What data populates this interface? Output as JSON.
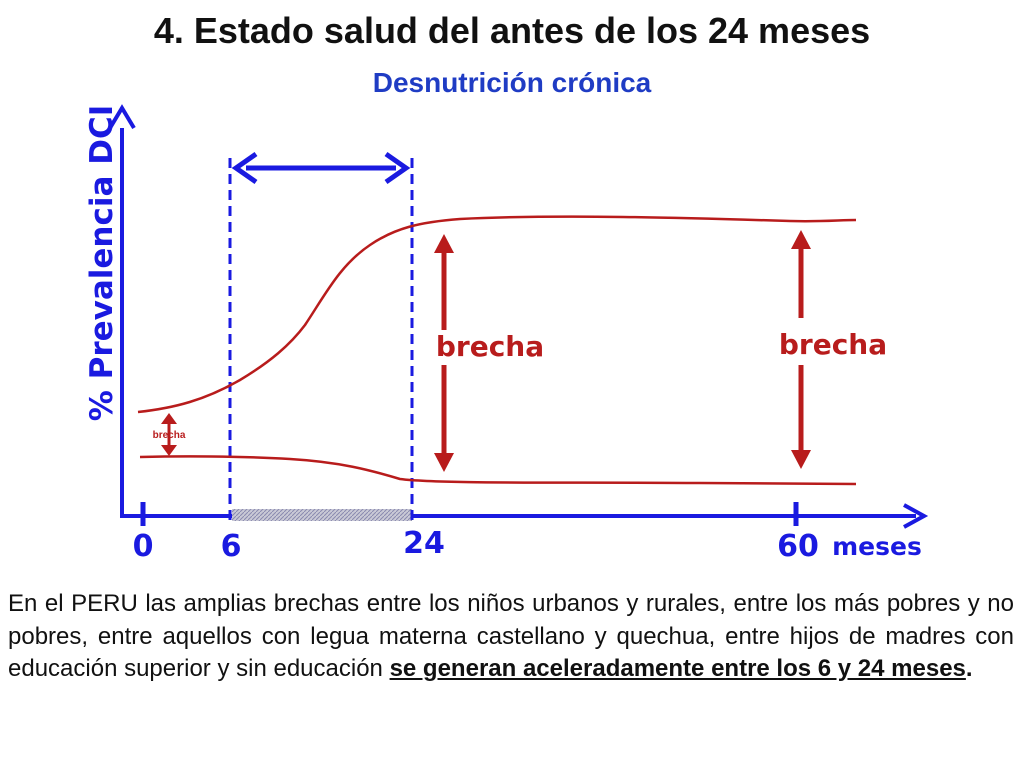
{
  "slide": {
    "title": "4. Estado salud del antes de los 24 meses",
    "subtitle": "Desnutrición crónica"
  },
  "diagram": {
    "y_axis_label": "% Prevalencia DCI",
    "x_axis_unit": "meses",
    "x_ticks": [
      "0",
      "6",
      "24",
      "60"
    ],
    "gap_labels": {
      "small": "brecha",
      "middle": "brecha",
      "right": "brecha"
    },
    "colors": {
      "axis": "#1a1ae0",
      "curve": "#b81c1c",
      "gap_arrow": "#b81c1c",
      "window_arrow": "#1a1ae0"
    }
  },
  "body_text": {
    "main": "En el PERU las amplias brechas entre los niños urbanos y rurales, entre los más pobres y no pobres, entre aquellos con legua materna castellano y quechua, entre hijos de madres con educación superior y sin educación ",
    "emphasis": "se generan aceleradamente entre los 6 y 24 meses",
    "end": "."
  }
}
